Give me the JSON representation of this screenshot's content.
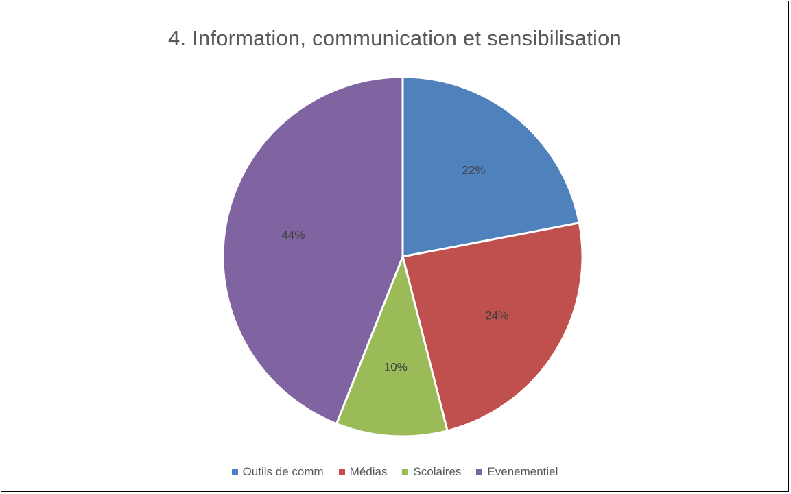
{
  "chart_data": {
    "type": "pie",
    "title": "4. Information, communication et sensibilisation",
    "categories": [
      "Outils de comm",
      "Médias",
      "Scolaires",
      "Evenementiel"
    ],
    "values": [
      22,
      24,
      10,
      44
    ],
    "data_labels": [
      "22%",
      "24%",
      "10%",
      "44%"
    ],
    "colors": [
      "#4F81BD",
      "#C0504D",
      "#9BBB59",
      "#8064A2"
    ],
    "legend": {
      "placement": "bottom",
      "entries": [
        "Outils de comm",
        "Médias",
        "Scolaires",
        "Evenementiel"
      ]
    }
  }
}
